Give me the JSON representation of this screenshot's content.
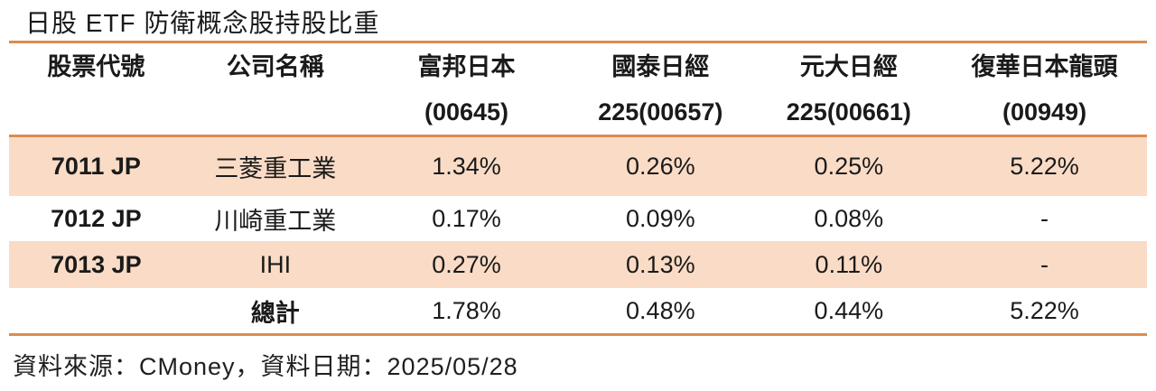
{
  "title": "日股 ETF 防衛概念股持股比重",
  "colors": {
    "accent_line": "#DC8C50",
    "row_highlight": "#FADCC6",
    "text": "#1A1A1A"
  },
  "table": {
    "columns": [
      {
        "line1": "股票代號",
        "line2": ""
      },
      {
        "line1": "公司名稱",
        "line2": ""
      },
      {
        "line1": "富邦日本",
        "line2": "(00645)"
      },
      {
        "line1": "國泰日經",
        "line2": "225(00657)"
      },
      {
        "line1": "元大日經",
        "line2": "225(00661)"
      },
      {
        "line1": "復華日本龍頭",
        "line2": "(00949)"
      }
    ],
    "rows": [
      {
        "code": "7011 JP",
        "company": "三菱重工業",
        "values": [
          "1.34%",
          "0.26%",
          "0.25%",
          "5.22%"
        ]
      },
      {
        "code": "7012 JP",
        "company": "川崎重工業",
        "values": [
          "0.17%",
          "0.09%",
          "0.08%",
          "-"
        ]
      },
      {
        "code": "7013 JP",
        "company": "IHI",
        "values": [
          "0.27%",
          "0.13%",
          "0.11%",
          "-"
        ]
      }
    ],
    "total_row": {
      "label": "總計",
      "values": [
        "1.78%",
        "0.48%",
        "0.44%",
        "5.22%"
      ]
    }
  },
  "footer": {
    "source_text": "資料來源：CMoney，資料日期：2025/05/28"
  },
  "chart_data": {
    "type": "table",
    "title": "日股 ETF 防衛概念股持股比重",
    "columns": [
      "股票代號",
      "公司名稱",
      "富邦日本(00645)",
      "國泰日經225(00657)",
      "元大日經225(00661)",
      "復華日本龍頭(00949)"
    ],
    "rows": [
      [
        "7011 JP",
        "三菱重工業",
        "1.34%",
        "0.26%",
        "0.25%",
        "5.22%"
      ],
      [
        "7012 JP",
        "川崎重工業",
        "0.17%",
        "0.09%",
        "0.08%",
        "-"
      ],
      [
        "7013 JP",
        "IHI",
        "0.27%",
        "0.13%",
        "0.11%",
        "-"
      ],
      [
        "",
        "總計",
        "1.78%",
        "0.48%",
        "0.44%",
        "5.22%"
      ]
    ],
    "source": "資料來源：CMoney，資料日期：2025/05/28",
    "layout_hints": {
      "highlighted_rows": [
        0,
        2
      ],
      "highlight_color": "#FADCC6",
      "rule_color": "#DC8C50"
    }
  }
}
